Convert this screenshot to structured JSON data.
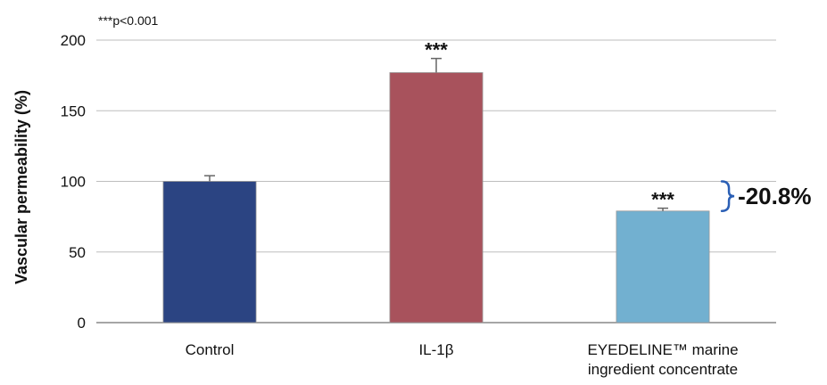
{
  "chart_data": {
    "type": "bar",
    "categories": [
      "Control",
      "IL-1β",
      "EYEDELINE™ marine ingredient concentrate"
    ],
    "category_lines": [
      [
        "Control"
      ],
      [
        "IL-1β"
      ],
      [
        "EYEDELINE™ marine",
        "ingredient concentrate"
      ]
    ],
    "values": [
      100,
      177,
      79
    ],
    "errors": [
      4,
      10,
      2
    ],
    "significance": [
      "",
      "***",
      "***"
    ],
    "bar_colors": [
      "#2b4482",
      "#a8525c",
      "#72b0d0"
    ],
    "ylabel": "Vascular permeability (%)",
    "ylim": [
      0,
      200
    ],
    "yticks": [
      0,
      50,
      100,
      150,
      200
    ],
    "grid": true,
    "note": "***p<0.001",
    "annotation": {
      "text": "-20.8%",
      "brace_color": "#2b5fb5"
    }
  }
}
